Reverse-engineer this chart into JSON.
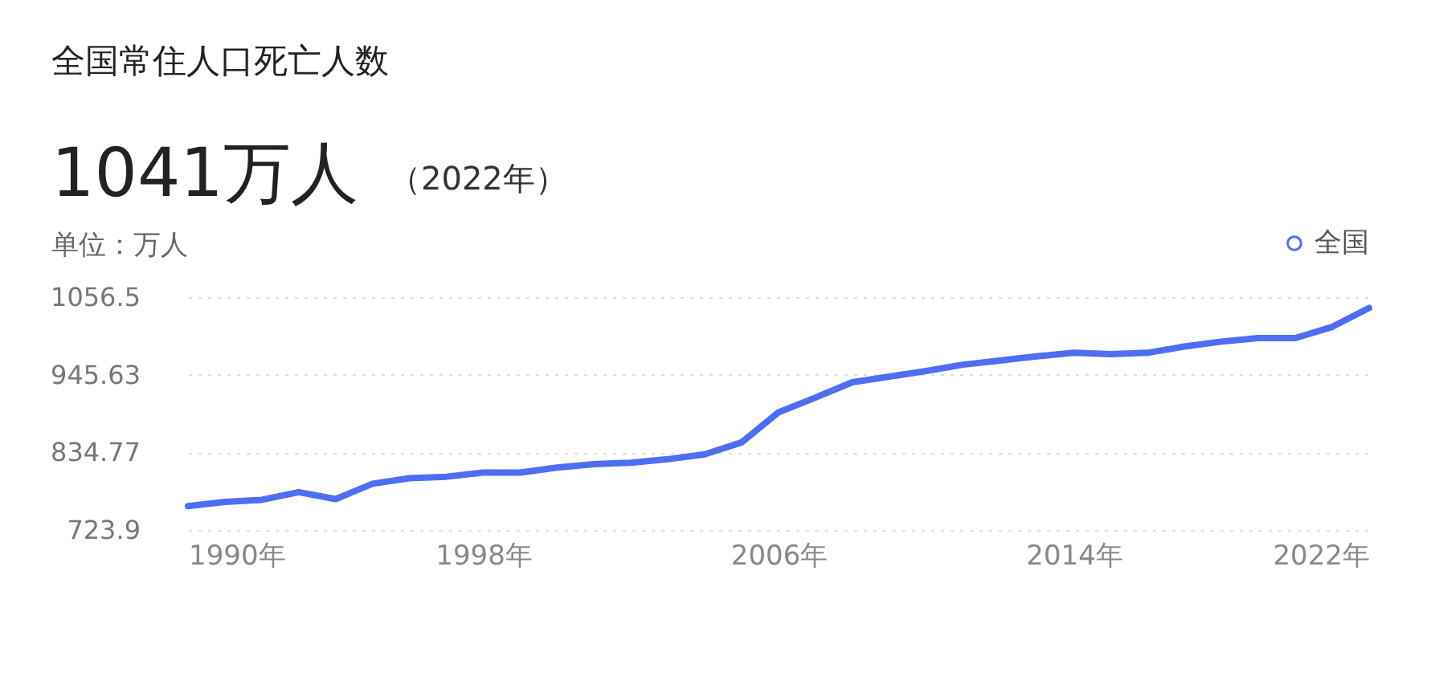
{
  "chart_data": {
    "type": "line",
    "title": "全国常住人口死亡人数",
    "subtitle": "1041万人",
    "annotations": [
      "（2022年）"
    ],
    "ylabel": "单位：万人",
    "x": [
      1990,
      1991,
      1992,
      1993,
      1994,
      1995,
      1996,
      1997,
      1998,
      1999,
      2000,
      2001,
      2002,
      2003,
      2004,
      2005,
      2006,
      2007,
      2008,
      2009,
      2010,
      2011,
      2012,
      2013,
      2014,
      2015,
      2016,
      2017,
      2018,
      2019,
      2020,
      2021,
      2022
    ],
    "series": [
      {
        "name": "全国",
        "color": "#4e6ef2",
        "values": [
          758,
          764,
          767,
          778,
          768,
          790,
          798,
          800,
          806,
          806,
          813,
          818,
          820,
          825,
          832,
          849,
          892,
          913,
          935,
          943,
          951,
          960,
          966,
          972,
          977,
          975,
          977,
          986,
          993,
          998,
          998,
          1014,
          1041
        ]
      }
    ],
    "xlim": [
      1990,
      2022
    ],
    "xticks": [
      {
        "value": 1990,
        "label": "1990年"
      },
      {
        "value": 1998,
        "label": "1998年"
      },
      {
        "value": 2006,
        "label": "2006年"
      },
      {
        "value": 2014,
        "label": "2014年"
      },
      {
        "value": 2022,
        "label": "2022年"
      }
    ],
    "ylim": [
      723.9,
      1056.5
    ],
    "yticks": [
      723.9,
      834.77,
      945.63,
      1056.5
    ],
    "grid": "y",
    "legend": "top right",
    "marker": "none",
    "line_style": "solid"
  }
}
